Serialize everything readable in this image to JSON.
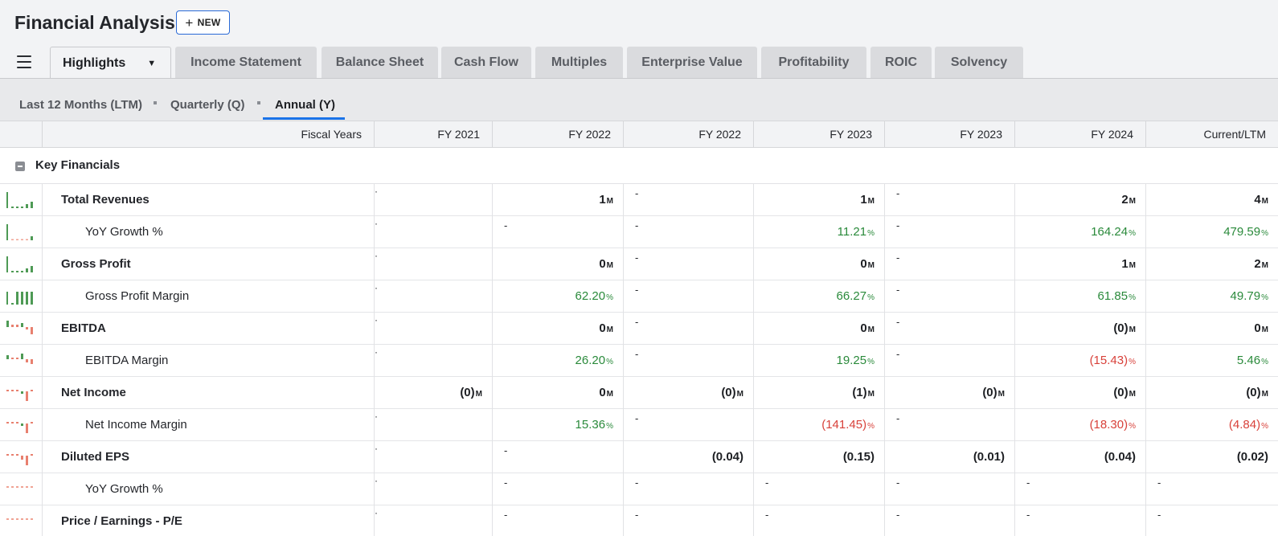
{
  "app": {
    "title": "Financial Analysis",
    "new_label": "NEW"
  },
  "tabs": [
    "Highlights",
    "Income Statement",
    "Balance Sheet",
    "Cash Flow",
    "Multiples",
    "Enterprise Value",
    "Profitability",
    "ROIC",
    "Solvency"
  ],
  "periods": [
    "Last 12 Months (LTM)",
    "Quarterly (Q)",
    "Annual (Y)"
  ],
  "active_period": "Annual (Y)",
  "table": {
    "header_label": "Fiscal Years",
    "columns": [
      "FY 2021",
      "FY 2022",
      "FY 2022",
      "FY 2023",
      "FY 2023",
      "FY 2024",
      "Current/LTM"
    ],
    "section": "Key Financials",
    "rows": [
      {
        "label": "Total Revenues",
        "bold": true,
        "spark": "bars-green",
        "cells": [
          {
            "t": "tick"
          },
          {
            "v": "1",
            "u": "M",
            "c": "plain"
          },
          {
            "t": "dash"
          },
          {
            "v": "1",
            "u": "M",
            "c": "plain"
          },
          {
            "t": "dash"
          },
          {
            "v": "2",
            "u": "M",
            "c": "plain"
          },
          {
            "v": "4",
            "u": "M",
            "c": "plain"
          }
        ]
      },
      {
        "label": "YoY Growth %",
        "bold": false,
        "spark": "growth-green",
        "cells": [
          {
            "t": "tick"
          },
          {
            "t": "dash"
          },
          {
            "t": "dash"
          },
          {
            "v": "11.21",
            "u": "%",
            "c": "pos"
          },
          {
            "t": "dash"
          },
          {
            "v": "164.24",
            "u": "%",
            "c": "pos"
          },
          {
            "v": "479.59",
            "u": "%",
            "c": "pos"
          }
        ]
      },
      {
        "label": "Gross Profit",
        "bold": true,
        "spark": "bars-green",
        "cells": [
          {
            "t": "tick"
          },
          {
            "v": "0",
            "u": "M",
            "c": "plain"
          },
          {
            "t": "dash"
          },
          {
            "v": "0",
            "u": "M",
            "c": "plain"
          },
          {
            "t": "dash"
          },
          {
            "v": "1",
            "u": "M",
            "c": "plain"
          },
          {
            "v": "2",
            "u": "M",
            "c": "plain"
          }
        ]
      },
      {
        "label": "Gross Profit Margin",
        "bold": false,
        "spark": "full-green",
        "cells": [
          {
            "t": "tick"
          },
          {
            "v": "62.20",
            "u": "%",
            "c": "pos"
          },
          {
            "t": "dash"
          },
          {
            "v": "66.27",
            "u": "%",
            "c": "pos"
          },
          {
            "t": "dash"
          },
          {
            "v": "61.85",
            "u": "%",
            "c": "pos"
          },
          {
            "v": "49.79",
            "u": "%",
            "c": "pos"
          }
        ]
      },
      {
        "label": "EBITDA",
        "bold": true,
        "spark": "mixed",
        "cells": [
          {
            "t": "tick"
          },
          {
            "v": "0",
            "u": "M",
            "c": "plain"
          },
          {
            "t": "dash"
          },
          {
            "v": "0",
            "u": "M",
            "c": "plain"
          },
          {
            "t": "dash"
          },
          {
            "v": "(0)",
            "u": "M",
            "c": "plain"
          },
          {
            "v": "0",
            "u": "M",
            "c": "plain"
          }
        ]
      },
      {
        "label": "EBITDA Margin",
        "bold": false,
        "spark": "mixed2",
        "cells": [
          {
            "t": "tick"
          },
          {
            "v": "26.20",
            "u": "%",
            "c": "pos"
          },
          {
            "t": "dash"
          },
          {
            "v": "19.25",
            "u": "%",
            "c": "pos"
          },
          {
            "t": "dash"
          },
          {
            "v": "(15.43)",
            "u": "%",
            "c": "neg"
          },
          {
            "v": "5.46",
            "u": "%",
            "c": "pos"
          }
        ]
      },
      {
        "label": "Net Income",
        "bold": true,
        "spark": "neg",
        "cells": [
          {
            "v": "(0)",
            "u": "M",
            "c": "plain"
          },
          {
            "v": "0",
            "u": "M",
            "c": "plain"
          },
          {
            "v": "(0)",
            "u": "M",
            "c": "plain"
          },
          {
            "v": "(1)",
            "u": "M",
            "c": "plain"
          },
          {
            "v": "(0)",
            "u": "M",
            "c": "plain"
          },
          {
            "v": "(0)",
            "u": "M",
            "c": "plain"
          },
          {
            "v": "(0)",
            "u": "M",
            "c": "plain"
          }
        ]
      },
      {
        "label": "Net Income Margin",
        "bold": false,
        "spark": "neg",
        "cells": [
          {
            "t": "tick"
          },
          {
            "v": "15.36",
            "u": "%",
            "c": "pos"
          },
          {
            "t": "dash"
          },
          {
            "v": "(141.45)",
            "u": "%",
            "c": "neg"
          },
          {
            "t": "dash"
          },
          {
            "v": "(18.30)",
            "u": "%",
            "c": "neg"
          },
          {
            "v": "(4.84)",
            "u": "%",
            "c": "neg"
          }
        ]
      },
      {
        "label": "Diluted EPS",
        "bold": true,
        "spark": "neg2",
        "cells": [
          {
            "t": "tick"
          },
          {
            "t": "dash"
          },
          {
            "v": "(0.04)",
            "u": "",
            "c": "plain"
          },
          {
            "v": "(0.15)",
            "u": "",
            "c": "plain"
          },
          {
            "v": "(0.01)",
            "u": "",
            "c": "plain"
          },
          {
            "v": "(0.04)",
            "u": "",
            "c": "plain"
          },
          {
            "v": "(0.02)",
            "u": "",
            "c": "plain"
          }
        ]
      },
      {
        "label": "YoY Growth %",
        "bold": false,
        "spark": "flat",
        "cells": [
          {
            "t": "tick"
          },
          {
            "t": "dash"
          },
          {
            "t": "dash"
          },
          {
            "t": "dash"
          },
          {
            "t": "dash"
          },
          {
            "t": "dash"
          },
          {
            "t": "dash"
          }
        ]
      },
      {
        "label": "Price / Earnings - P/E",
        "bold": true,
        "spark": "flat",
        "cells": [
          {
            "t": "tick"
          },
          {
            "t": "dash"
          },
          {
            "t": "dash"
          },
          {
            "t": "dash"
          },
          {
            "t": "dash"
          },
          {
            "t": "dash"
          },
          {
            "t": "dash"
          }
        ]
      }
    ]
  },
  "colors": {
    "positive": "#2a8a3b",
    "negative": "#d8413a",
    "accent": "#1a73e8"
  },
  "icons": {
    "menu": "hamburger-icon",
    "collapse": "collapse-icon",
    "caret": "caret-down-icon",
    "new": "plus-icon"
  }
}
